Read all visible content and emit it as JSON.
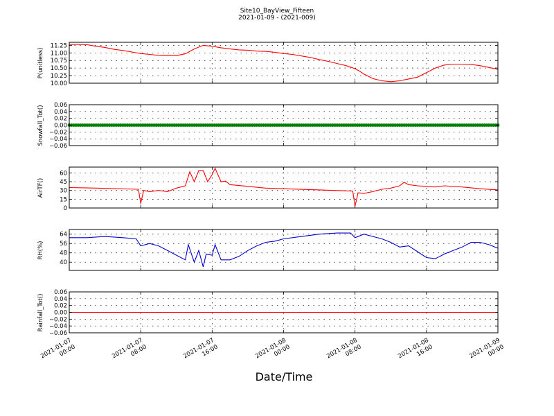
{
  "figure": {
    "title": "Site10_BayView_Fifteen",
    "subtitle": "2021-01-09 - (2021-009)",
    "xlabel": "Date/Time",
    "x_ticks": [
      {
        "x": "2021-01-07 00:00",
        "line1": "2021-01-07",
        "line2": "00:00"
      },
      {
        "x": "2021-01-07 08:00",
        "line1": "2021-01-07",
        "line2": "08:00"
      },
      {
        "x": "2021-01-07 16:00",
        "line1": "2021-01-07",
        "line2": "16:00"
      },
      {
        "x": "2021-01-08 00:00",
        "line1": "2021-01-08",
        "line2": "00:00"
      },
      {
        "x": "2021-01-08 08:00",
        "line1": "2021-01-08",
        "line2": "08:00"
      },
      {
        "x": "2021-01-08 16:00",
        "line1": "2021-01-08",
        "line2": "16:00"
      },
      {
        "x": "2021-01-09 00:00",
        "line1": "2021-01-09",
        "line2": "00:00"
      }
    ]
  },
  "chart_data": [
    {
      "type": "line",
      "title": "",
      "ylabel": "P(unitless)",
      "xlim": [
        "2021-01-07 00:00",
        "2021-01-09 00:00"
      ],
      "ylim": [
        10.0,
        11.35
      ],
      "yticks": [
        10.0,
        10.25,
        10.5,
        10.75,
        11.0,
        11.25
      ],
      "ytick_labels": [
        "10.00",
        "10.25",
        "10.50",
        "10.75",
        "11.00",
        "11.25"
      ],
      "grid": true,
      "color": "#ff0000",
      "series": [
        {
          "points": [
            [
              "2021-01-07 00:00",
              11.28
            ],
            [
              "2021-01-07 01:00",
              11.28
            ],
            [
              "2021-01-07 02:00",
              11.27
            ],
            [
              "2021-01-07 03:00",
              11.22
            ],
            [
              "2021-01-07 04:00",
              11.18
            ],
            [
              "2021-01-07 05:00",
              11.12
            ],
            [
              "2021-01-07 06:00",
              11.08
            ],
            [
              "2021-01-07 07:00",
              11.03
            ],
            [
              "2021-01-07 08:00",
              10.98
            ],
            [
              "2021-01-07 09:00",
              10.95
            ],
            [
              "2021-01-07 10:00",
              10.92
            ],
            [
              "2021-01-07 11:00",
              10.91
            ],
            [
              "2021-01-07 12:00",
              10.91
            ],
            [
              "2021-01-07 13:00",
              10.97
            ],
            [
              "2021-01-07 14:00",
              11.13
            ],
            [
              "2021-01-07 15:00",
              11.25
            ],
            [
              "2021-01-07 16:00",
              11.22
            ],
            [
              "2021-01-07 17:00",
              11.17
            ],
            [
              "2021-01-07 18:00",
              11.13
            ],
            [
              "2021-01-07 19:00",
              11.1
            ],
            [
              "2021-01-07 20:00",
              11.09
            ],
            [
              "2021-01-07 21:00",
              11.06
            ],
            [
              "2021-01-07 22:00",
              11.05
            ],
            [
              "2021-01-07 23:00",
              11.02
            ],
            [
              "2021-01-08 00:00",
              10.98
            ],
            [
              "2021-01-08 01:00",
              10.95
            ],
            [
              "2021-01-08 02:00",
              10.9
            ],
            [
              "2021-01-08 03:00",
              10.85
            ],
            [
              "2021-01-08 04:00",
              10.78
            ],
            [
              "2021-01-08 05:00",
              10.72
            ],
            [
              "2021-01-08 06:00",
              10.65
            ],
            [
              "2021-01-08 07:00",
              10.58
            ],
            [
              "2021-01-08 08:00",
              10.48
            ],
            [
              "2021-01-08 08:30",
              10.4
            ],
            [
              "2021-01-08 09:00",
              10.3
            ],
            [
              "2021-01-08 10:00",
              10.15
            ],
            [
              "2021-01-08 11:00",
              10.08
            ],
            [
              "2021-01-08 12:00",
              10.05
            ],
            [
              "2021-01-08 13:00",
              10.08
            ],
            [
              "2021-01-08 14:00",
              10.14
            ],
            [
              "2021-01-08 15:00",
              10.2
            ],
            [
              "2021-01-08 16:00",
              10.35
            ],
            [
              "2021-01-08 17:00",
              10.5
            ],
            [
              "2021-01-08 18:00",
              10.6
            ],
            [
              "2021-01-08 19:00",
              10.63
            ],
            [
              "2021-01-08 20:00",
              10.63
            ],
            [
              "2021-01-08 21:00",
              10.62
            ],
            [
              "2021-01-08 22:00",
              10.58
            ],
            [
              "2021-01-08 23:00",
              10.52
            ],
            [
              "2021-01-09 00:00",
              10.46
            ]
          ]
        }
      ]
    },
    {
      "type": "scatter",
      "title": "",
      "ylabel": "Snowfall_Tot()",
      "xlim": [
        "2021-01-07 00:00",
        "2021-01-09 00:00"
      ],
      "ylim": [
        -0.06,
        0.06
      ],
      "yticks": [
        -0.06,
        -0.04,
        -0.02,
        0.0,
        0.02,
        0.04,
        0.06
      ],
      "ytick_labels": [
        "−0.06",
        "−0.04",
        "−0.02",
        "0.00",
        "0.02",
        "0.04",
        "0.06"
      ],
      "grid": true,
      "color": "#008000",
      "series": [
        {
          "constant": 0.0,
          "interval_minutes": 15
        }
      ]
    },
    {
      "type": "line",
      "title": "",
      "ylabel": "AirTF()",
      "xlim": [
        "2021-01-07 00:00",
        "2021-01-09 00:00"
      ],
      "ylim": [
        0,
        70
      ],
      "yticks": [
        0,
        15,
        30,
        45,
        60
      ],
      "ytick_labels": [
        "0",
        "15",
        "30",
        "45",
        "60"
      ],
      "grid": true,
      "color": "#ff0000",
      "series": [
        {
          "points": [
            [
              "2021-01-07 00:00",
              35
            ],
            [
              "2021-01-07 03:00",
              34
            ],
            [
              "2021-01-07 07:45",
              32
            ],
            [
              "2021-01-07 08:00",
              8
            ],
            [
              "2021-01-07 08:20",
              30
            ],
            [
              "2021-01-07 09:00",
              28
            ],
            [
              "2021-01-07 10:00",
              30
            ],
            [
              "2021-01-07 11:00",
              28
            ],
            [
              "2021-01-07 12:00",
              34
            ],
            [
              "2021-01-07 13:00",
              38
            ],
            [
              "2021-01-07 13:30",
              62
            ],
            [
              "2021-01-07 14:00",
              45
            ],
            [
              "2021-01-07 14:30",
              64
            ],
            [
              "2021-01-07 15:00",
              64
            ],
            [
              "2021-01-07 15:30",
              45
            ],
            [
              "2021-01-07 16:00",
              57
            ],
            [
              "2021-01-07 16:20",
              68
            ],
            [
              "2021-01-07 17:00",
              45
            ],
            [
              "2021-01-07 17:30",
              46
            ],
            [
              "2021-01-07 18:00",
              40
            ],
            [
              "2021-01-07 20:00",
              37
            ],
            [
              "2021-01-07 22:00",
              34
            ],
            [
              "2021-01-08 00:00",
              33
            ],
            [
              "2021-01-08 04:00",
              31
            ],
            [
              "2021-01-08 07:45",
              29
            ],
            [
              "2021-01-08 08:00",
              3
            ],
            [
              "2021-01-08 08:20",
              26
            ],
            [
              "2021-01-08 09:00",
              25
            ],
            [
              "2021-01-08 10:00",
              28
            ],
            [
              "2021-01-08 11:00",
              32
            ],
            [
              "2021-01-08 12:00",
              34
            ],
            [
              "2021-01-08 13:00",
              38
            ],
            [
              "2021-01-08 13:30",
              44
            ],
            [
              "2021-01-08 14:00",
              40
            ],
            [
              "2021-01-08 15:00",
              38
            ],
            [
              "2021-01-08 16:00",
              37
            ],
            [
              "2021-01-08 17:00",
              36
            ],
            [
              "2021-01-08 18:00",
              38
            ],
            [
              "2021-01-08 20:00",
              36
            ],
            [
              "2021-01-08 22:00",
              33
            ],
            [
              "2021-01-09 00:00",
              31
            ]
          ]
        }
      ]
    },
    {
      "type": "line",
      "title": "",
      "ylabel": "RH(%)",
      "xlim": [
        "2021-01-07 00:00",
        "2021-01-09 00:00"
      ],
      "ylim": [
        33,
        68
      ],
      "yticks": [
        40,
        48,
        56,
        64
      ],
      "ytick_labels": [
        "40",
        "48",
        "56",
        "64"
      ],
      "grid": true,
      "color": "#0000cc",
      "series": [
        {
          "points": [
            [
              "2021-01-07 00:00",
              61
            ],
            [
              "2021-01-07 02:00",
              61
            ],
            [
              "2021-01-07 04:00",
              62
            ],
            [
              "2021-01-07 06:00",
              61
            ],
            [
              "2021-01-07 07:30",
              60
            ],
            [
              "2021-01-07 08:00",
              54
            ],
            [
              "2021-01-07 09:00",
              56
            ],
            [
              "2021-01-07 10:00",
              54
            ],
            [
              "2021-01-07 11:00",
              50
            ],
            [
              "2021-01-07 12:00",
              46
            ],
            [
              "2021-01-07 13:00",
              42
            ],
            [
              "2021-01-07 13:20",
              55
            ],
            [
              "2021-01-07 14:00",
              40
            ],
            [
              "2021-01-07 14:30",
              50
            ],
            [
              "2021-01-07 15:00",
              36
            ],
            [
              "2021-01-07 15:20",
              47
            ],
            [
              "2021-01-07 16:00",
              46
            ],
            [
              "2021-01-07 16:20",
              55
            ],
            [
              "2021-01-07 17:00",
              42
            ],
            [
              "2021-01-07 18:00",
              42
            ],
            [
              "2021-01-07 19:00",
              45
            ],
            [
              "2021-01-07 20:00",
              50
            ],
            [
              "2021-01-07 21:00",
              54
            ],
            [
              "2021-01-07 22:00",
              57
            ],
            [
              "2021-01-07 23:00",
              58
            ],
            [
              "2021-01-08 00:00",
              60
            ],
            [
              "2021-01-08 02:00",
              62
            ],
            [
              "2021-01-08 04:00",
              64
            ],
            [
              "2021-01-08 06:00",
              65
            ],
            [
              "2021-01-08 07:30",
              65
            ],
            [
              "2021-01-08 08:00",
              61
            ],
            [
              "2021-01-08 09:00",
              64
            ],
            [
              "2021-01-08 10:00",
              62
            ],
            [
              "2021-01-08 11:00",
              60
            ],
            [
              "2021-01-08 12:00",
              57
            ],
            [
              "2021-01-08 13:00",
              53
            ],
            [
              "2021-01-08 14:00",
              54
            ],
            [
              "2021-01-08 15:00",
              49
            ],
            [
              "2021-01-08 16:00",
              44
            ],
            [
              "2021-01-08 17:00",
              43
            ],
            [
              "2021-01-08 18:00",
              47
            ],
            [
              "2021-01-08 19:00",
              50
            ],
            [
              "2021-01-08 20:00",
              53
            ],
            [
              "2021-01-08 21:00",
              57
            ],
            [
              "2021-01-08 22:00",
              57
            ],
            [
              "2021-01-08 23:00",
              55
            ],
            [
              "2021-01-09 00:00",
              52
            ]
          ]
        }
      ]
    },
    {
      "type": "line",
      "title": "",
      "ylabel": "Rainfall_Tot()",
      "xlim": [
        "2021-01-07 00:00",
        "2021-01-09 00:00"
      ],
      "ylim": [
        -0.06,
        0.06
      ],
      "yticks": [
        -0.06,
        -0.04,
        -0.02,
        0.0,
        0.02,
        0.04,
        0.06
      ],
      "ytick_labels": [
        "−0.06",
        "−0.04",
        "−0.02",
        "0.00",
        "0.02",
        "0.04",
        "0.06"
      ],
      "grid": true,
      "color": "#ff0000",
      "series": [
        {
          "points": [
            [
              "2021-01-07 00:00",
              0.0
            ],
            [
              "2021-01-09 00:00",
              0.0
            ]
          ]
        }
      ]
    }
  ]
}
